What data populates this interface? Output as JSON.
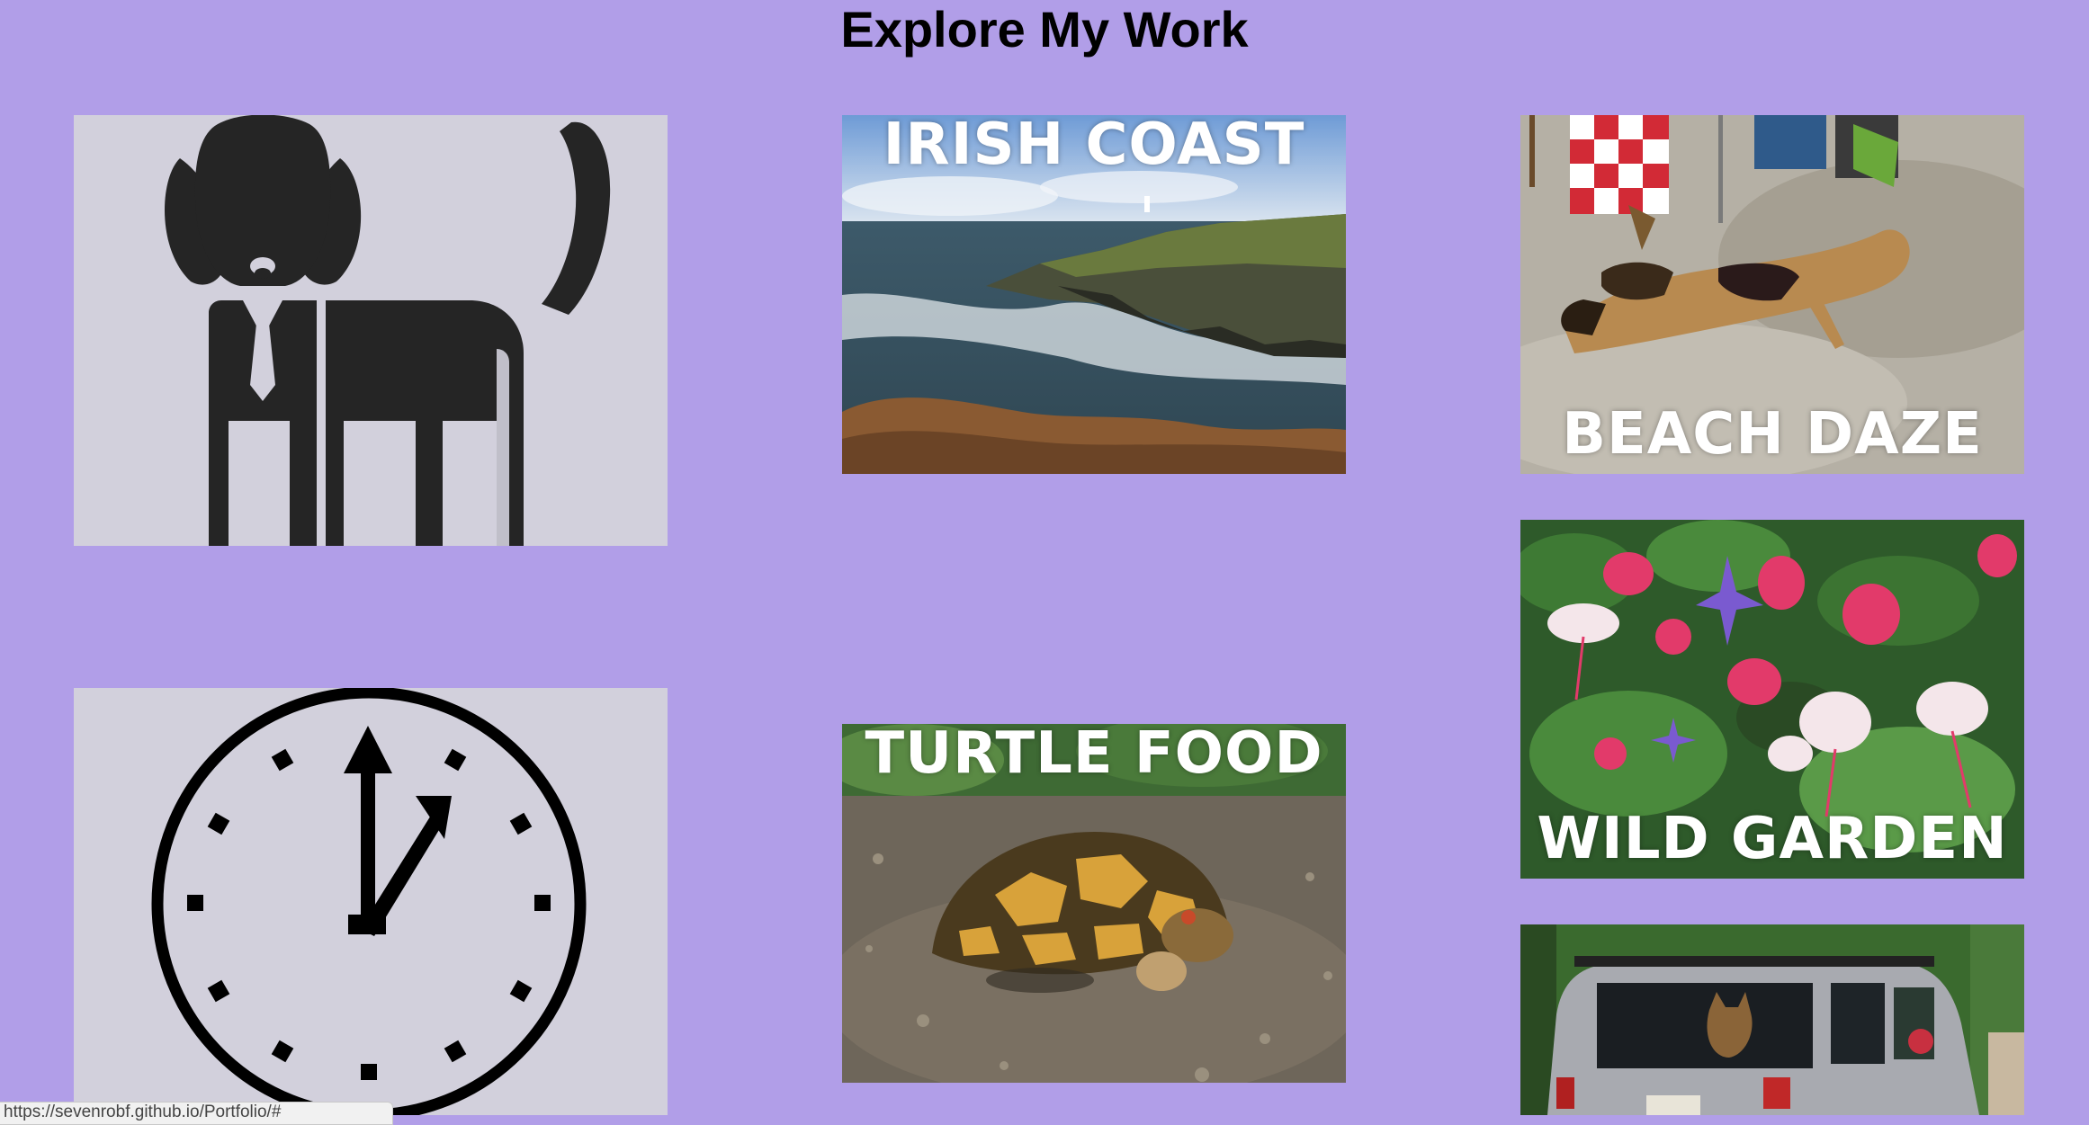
{
  "page": {
    "title": "Explore My Work"
  },
  "tiles": {
    "irish_coast": {
      "label": "IRISH COAST"
    },
    "beach_daze": {
      "label": "BEACH DAZE"
    },
    "wild_garden": {
      "label": "WILD GARDEN"
    },
    "turtle_food": {
      "label": "TURTLE FOOD"
    }
  },
  "icons": {
    "dog": "dog-in-suit-icon",
    "clock": "clock-icon"
  },
  "status": {
    "url": "https://sevenrobf.github.io/Portfolio/#"
  },
  "colors": {
    "background": "#b19ee8",
    "tile_bg": "#d2d0dc",
    "icon": "#252525"
  }
}
